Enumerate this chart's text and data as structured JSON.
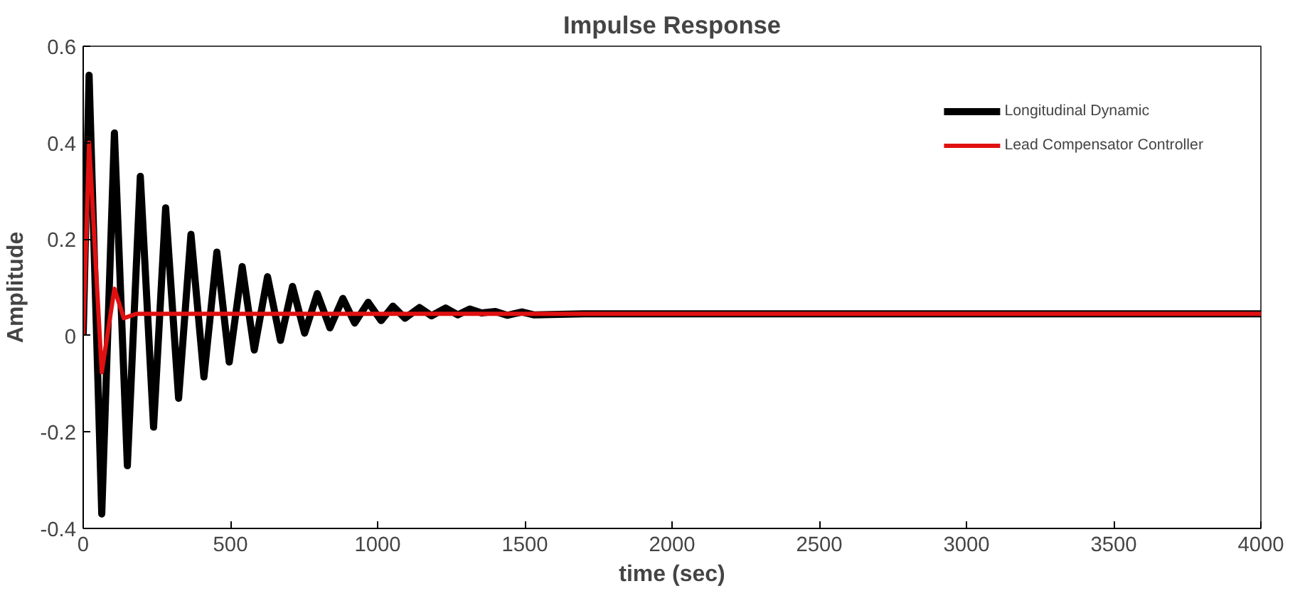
{
  "chart_data": {
    "type": "line",
    "title": "Impulse Response",
    "xlabel": "time (sec)",
    "ylabel": "Amplitude",
    "xlim": [
      0,
      4000
    ],
    "ylim": [
      -0.4,
      0.6
    ],
    "xticks": [
      0,
      500,
      1000,
      1500,
      2000,
      2500,
      3000,
      3500,
      4000
    ],
    "yticks": [
      -0.4,
      -0.2,
      0,
      0.2,
      0.4,
      0.6
    ],
    "grid": false,
    "legend": "top right",
    "line_style": "solid",
    "series": [
      {
        "name": "Longitudinal Dynamic",
        "color": "#000000",
        "x": [
          0,
          20,
          63,
          106,
          150,
          194,
          239,
          280,
          324,
          366,
          410,
          454,
          496,
          540,
          581,
          626,
          670,
          711,
          752,
          795,
          838,
          882,
          922,
          968,
          1012,
          1052,
          1093,
          1142,
          1183,
          1231,
          1272,
          1313,
          1353,
          1400,
          1440,
          1490,
          1530,
          1700,
          4000
        ],
        "values": [
          0,
          0.54,
          -0.37,
          0.42,
          -0.27,
          0.33,
          -0.19,
          0.265,
          -0.13,
          0.21,
          -0.086,
          0.173,
          -0.055,
          0.143,
          -0.03,
          0.122,
          -0.01,
          0.102,
          0.005,
          0.087,
          0.016,
          0.077,
          0.026,
          0.069,
          0.031,
          0.061,
          0.036,
          0.058,
          0.041,
          0.057,
          0.043,
          0.055,
          0.047,
          0.05,
          0.042,
          0.049,
          0.043,
          0.045,
          0.045
        ]
      },
      {
        "name": "Lead Compensator Controller",
        "color": "#e01010",
        "x": [
          0,
          20,
          63,
          106,
          138,
          180,
          4000
        ],
        "values": [
          0,
          0.4,
          -0.076,
          0.097,
          0.036,
          0.045,
          0.045
        ]
      }
    ]
  }
}
